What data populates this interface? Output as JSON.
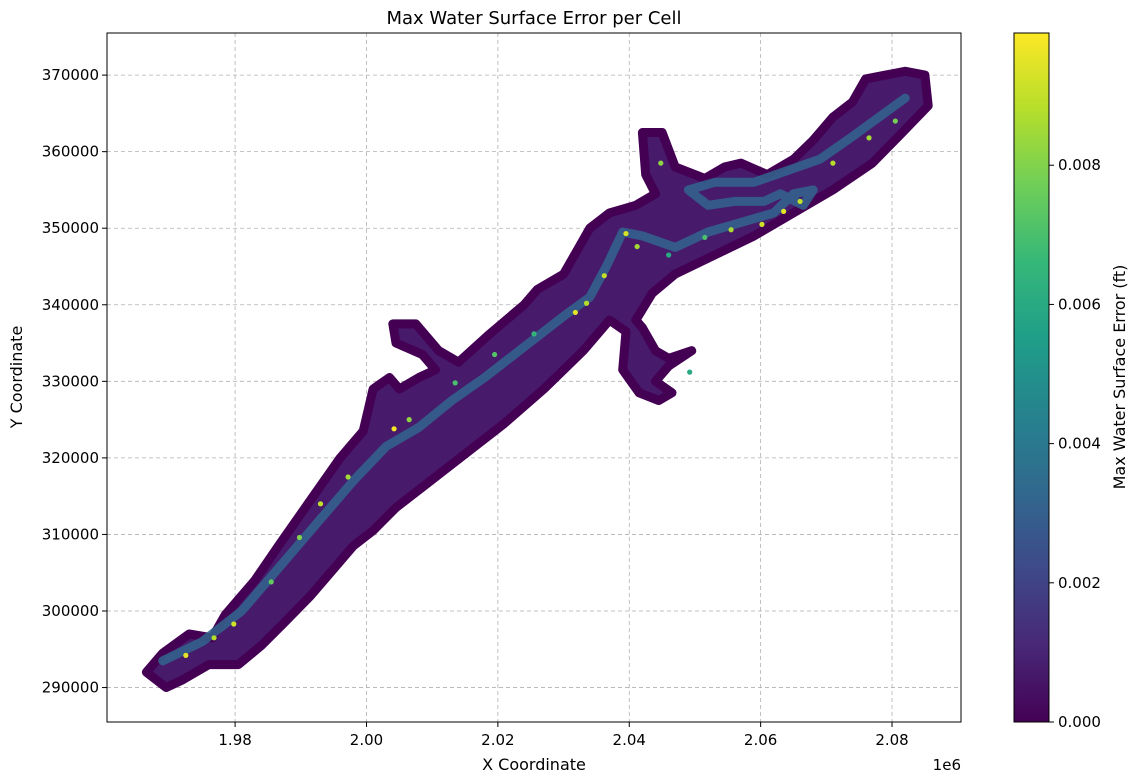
{
  "chart_data": {
    "type": "heatmap",
    "title": "Max Water Surface Error per Cell",
    "xlabel": "X Coordinate",
    "ylabel": "Y Coordinate",
    "x_offset_label": "1e6",
    "xlim": [
      1960500,
      2090500
    ],
    "ylim": [
      285500,
      375500
    ],
    "x_ticks": [
      1980000,
      2000000,
      2020000,
      2040000,
      2060000,
      2080000
    ],
    "x_tick_labels": [
      "1.98",
      "2.00",
      "2.02",
      "2.04",
      "2.06",
      "2.08"
    ],
    "y_ticks": [
      290000,
      300000,
      310000,
      320000,
      330000,
      340000,
      350000,
      360000,
      370000
    ],
    "y_tick_labels": [
      "290000",
      "300000",
      "310000",
      "320000",
      "330000",
      "340000",
      "350000",
      "360000",
      "370000"
    ],
    "grid": true,
    "colorbar": {
      "label": "Max Water Surface Error (ft)",
      "colormap": "viridis",
      "range": [
        0,
        0.0099
      ],
      "ticks": [
        0,
        0.002,
        0.004,
        0.006,
        0.008
      ],
      "tick_labels": [
        "0.000",
        "0.002",
        "0.004",
        "0.006",
        "0.008"
      ]
    },
    "domain_outline": [
      [
        1966500,
        292000
      ],
      [
        1969000,
        294500
      ],
      [
        1973000,
        297000
      ],
      [
        1976500,
        296500
      ],
      [
        1978500,
        299500
      ],
      [
        1983000,
        304000
      ],
      [
        1987000,
        309000
      ],
      [
        1991500,
        314500
      ],
      [
        1996000,
        320000
      ],
      [
        1999500,
        323500
      ],
      [
        2001000,
        329000
      ],
      [
        2003500,
        330500
      ],
      [
        2005000,
        329000
      ],
      [
        2008000,
        330500
      ],
      [
        2010500,
        331500
      ],
      [
        2008500,
        333500
      ],
      [
        2004500,
        335000
      ],
      [
        2004000,
        337500
      ],
      [
        2007500,
        337500
      ],
      [
        2011000,
        334000
      ],
      [
        2014000,
        332500
      ],
      [
        2018500,
        336000
      ],
      [
        2024000,
        340000
      ],
      [
        2026000,
        342000
      ],
      [
        2030000,
        344000
      ],
      [
        2032000,
        347000
      ],
      [
        2034000,
        350000
      ],
      [
        2037000,
        352000
      ],
      [
        2041000,
        353000
      ],
      [
        2044000,
        354500
      ],
      [
        2042500,
        357000
      ],
      [
        2042000,
        362500
      ],
      [
        2045000,
        362500
      ],
      [
        2047000,
        358000
      ],
      [
        2051500,
        356500
      ],
      [
        2054500,
        358000
      ],
      [
        2057000,
        358500
      ],
      [
        2061000,
        357000
      ],
      [
        2065000,
        359000
      ],
      [
        2068000,
        361500
      ],
      [
        2071000,
        364500
      ],
      [
        2074000,
        366500
      ],
      [
        2076000,
        369500
      ],
      [
        2079000,
        370000
      ],
      [
        2082000,
        370500
      ],
      [
        2085000,
        370000
      ],
      [
        2085500,
        366000
      ],
      [
        2081000,
        362000
      ],
      [
        2077000,
        358500
      ],
      [
        2071000,
        355000
      ],
      [
        2065000,
        352000
      ],
      [
        2059000,
        349000
      ],
      [
        2053000,
        346500
      ],
      [
        2047000,
        344000
      ],
      [
        2043500,
        341500
      ],
      [
        2041000,
        338000
      ],
      [
        2042000,
        337000
      ],
      [
        2044000,
        334000
      ],
      [
        2046000,
        333000
      ],
      [
        2049500,
        334000
      ],
      [
        2046000,
        332000
      ],
      [
        2044000,
        330000
      ],
      [
        2046500,
        328500
      ],
      [
        2044500,
        327500
      ],
      [
        2041500,
        328500
      ],
      [
        2039000,
        331500
      ],
      [
        2039500,
        336500
      ],
      [
        2037000,
        338000
      ],
      [
        2033000,
        334000
      ],
      [
        2027000,
        329000
      ],
      [
        2021000,
        324500
      ],
      [
        2015000,
        320500
      ],
      [
        2009000,
        316500
      ],
      [
        2004500,
        313500
      ],
      [
        2001000,
        310500
      ],
      [
        1998000,
        308500
      ],
      [
        1995000,
        305500
      ],
      [
        1991500,
        302000
      ],
      [
        1987500,
        298500
      ],
      [
        1984000,
        295500
      ],
      [
        1980500,
        293000
      ],
      [
        1976000,
        293000
      ],
      [
        1972000,
        291000
      ],
      [
        1969500,
        290000
      ]
    ],
    "channel_path": [
      [
        1969000,
        293500
      ],
      [
        1975000,
        296000
      ],
      [
        1981000,
        300000
      ],
      [
        1987000,
        306000
      ],
      [
        1993000,
        312000
      ],
      [
        1998000,
        317000
      ],
      [
        2003000,
        321500
      ],
      [
        2008000,
        324000
      ],
      [
        2013000,
        327500
      ],
      [
        2018000,
        330500
      ],
      [
        2024000,
        334500
      ],
      [
        2030000,
        338500
      ],
      [
        2034000,
        341000
      ],
      [
        2036500,
        345000
      ],
      [
        2039000,
        349500
      ],
      [
        2042000,
        349000
      ],
      [
        2047000,
        347500
      ],
      [
        2052000,
        349500
      ],
      [
        2058000,
        351000
      ],
      [
        2062000,
        352000
      ],
      [
        2065000,
        354500
      ],
      [
        2068000,
        355000
      ],
      [
        2066500,
        353000
      ],
      [
        2063000,
        354500
      ],
      [
        2060500,
        353500
      ],
      [
        2056000,
        353500
      ],
      [
        2052000,
        353000
      ],
      [
        2049000,
        355000
      ],
      [
        2053000,
        356000
      ],
      [
        2059000,
        356000
      ],
      [
        2064000,
        357500
      ],
      [
        2069000,
        359000
      ],
      [
        2074000,
        362000
      ],
      [
        2078000,
        364500
      ],
      [
        2082000,
        367000
      ]
    ],
    "hotspots": [
      {
        "x": 1972500,
        "y": 294200,
        "value": 0.0095
      },
      {
        "x": 1976800,
        "y": 296500,
        "value": 0.0088
      },
      {
        "x": 1979800,
        "y": 298300,
        "value": 0.0092
      },
      {
        "x": 1985500,
        "y": 303800,
        "value": 0.0075
      },
      {
        "x": 1989800,
        "y": 309600,
        "value": 0.008
      },
      {
        "x": 1993000,
        "y": 314000,
        "value": 0.009
      },
      {
        "x": 1997200,
        "y": 317500,
        "value": 0.0085
      },
      {
        "x": 2004200,
        "y": 323800,
        "value": 0.0098
      },
      {
        "x": 2006500,
        "y": 325000,
        "value": 0.0082
      },
      {
        "x": 2013500,
        "y": 329800,
        "value": 0.007
      },
      {
        "x": 2019500,
        "y": 333500,
        "value": 0.0072
      },
      {
        "x": 2025500,
        "y": 336200,
        "value": 0.0065
      },
      {
        "x": 2031800,
        "y": 339000,
        "value": 0.0095
      },
      {
        "x": 2033500,
        "y": 340200,
        "value": 0.0088
      },
      {
        "x": 2036200,
        "y": 343800,
        "value": 0.009
      },
      {
        "x": 2039500,
        "y": 349300,
        "value": 0.0093
      },
      {
        "x": 2041200,
        "y": 347600,
        "value": 0.0085
      },
      {
        "x": 2046000,
        "y": 346500,
        "value": 0.006
      },
      {
        "x": 2051500,
        "y": 348800,
        "value": 0.007
      },
      {
        "x": 2055500,
        "y": 349800,
        "value": 0.0086
      },
      {
        "x": 2060200,
        "y": 350500,
        "value": 0.0092
      },
      {
        "x": 2063500,
        "y": 352200,
        "value": 0.0095
      },
      {
        "x": 2066000,
        "y": 353500,
        "value": 0.009
      },
      {
        "x": 2071000,
        "y": 358500,
        "value": 0.0088
      },
      {
        "x": 2076500,
        "y": 361800,
        "value": 0.0085
      },
      {
        "x": 2080500,
        "y": 364000,
        "value": 0.0078
      },
      {
        "x": 2044800,
        "y": 358500,
        "value": 0.0082
      },
      {
        "x": 2049200,
        "y": 331200,
        "value": 0.006
      }
    ]
  }
}
